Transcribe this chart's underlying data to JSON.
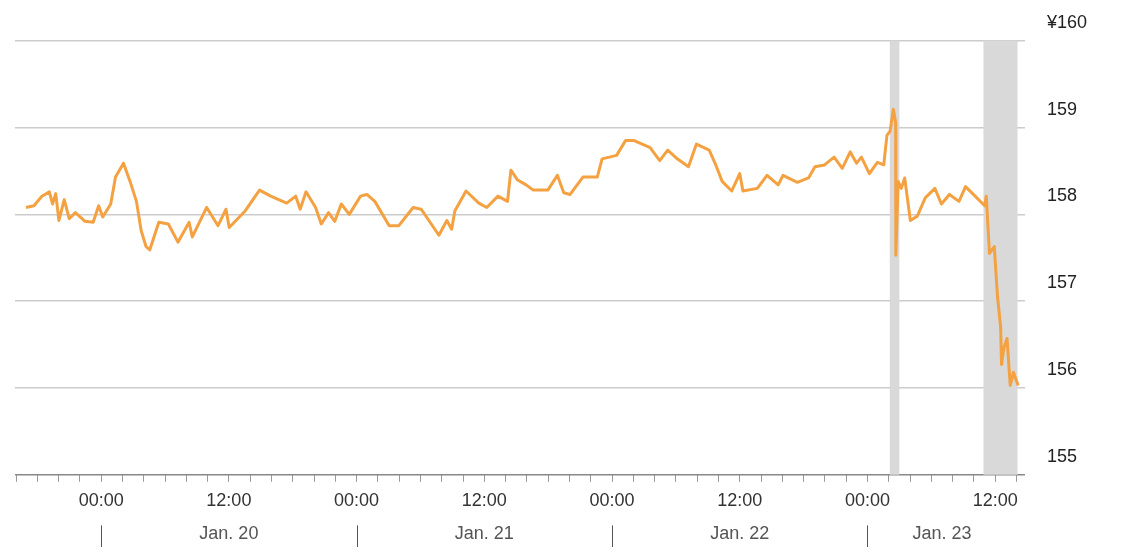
{
  "chart_data": {
    "type": "line",
    "marker": "none",
    "grid": "y",
    "x": [
      "--01-19T16:56",
      "--01-19T17:41",
      "--01-19T18:26",
      "--01-19T19:08",
      "--01-19T19:26",
      "--01-19T19:44",
      "--01-19T20:02",
      "--01-19T20:32",
      "--01-19T21:00",
      "--01-19T21:35",
      "--01-19T22:29",
      "--01-19T23:15",
      "--01-19T23:46",
      "--01-20T00:09",
      "--01-20T00:54",
      "--01-20T01:21",
      "--01-20T02:06",
      "--01-20T02:43",
      "--01-20T03:19",
      "--01-20T03:46",
      "--01-20T04:13",
      "--01-20T04:34",
      "--01-20T05:25",
      "--01-20T06:19",
      "--01-20T07:13",
      "--01-20T08:16",
      "--01-20T08:34",
      "--01-20T09:55",
      "--01-20T10:59",
      "--01-20T11:44",
      "--01-20T12:02",
      "--01-20T13:32",
      "--01-20T14:53",
      "--01-20T15:56",
      "--01-20T17:26",
      "--01-20T18:17",
      "--01-20T18:42",
      "--01-20T19:15",
      "--01-20T20:09",
      "--01-20T20:41",
      "--01-20T21:22",
      "--01-20T21:57",
      "--01-20T22:34",
      "--01-20T23:19",
      "--01-21T00:22",
      "--01-21T00:58",
      "--01-21T01:43",
      "--01-21T03:04",
      "--01-21T03:58",
      "--01-21T05:19",
      "--01-21T06:04",
      "--01-21T06:41",
      "--01-21T07:44",
      "--01-21T08:29",
      "--01-21T08:56",
      "--01-21T09:14",
      "--01-21T10:17",
      "--01-21T11:29",
      "--01-21T12:14",
      "--01-21T13:17",
      "--01-21T14:11",
      "--01-21T14:30",
      "--01-21T15:06",
      "--01-21T15:56",
      "--01-21T16:36",
      "--01-21T17:58",
      "--01-21T18:52",
      "--01-21T19:28",
      "--01-21T20:04",
      "--01-21T21:16",
      "--01-21T22:37",
      "--01-21T23:04",
      "--01-22T00:26",
      "--01-22T01:16",
      "--01-22T02:05",
      "--01-22T03:35",
      "--01-22T04:29",
      "--01-22T05:14",
      "--01-22T06:08",
      "--01-22T07:11",
      "--01-22T07:56",
      "--01-22T09:08",
      "--01-22T09:45",
      "--01-22T10:21",
      "--01-22T11:15",
      "--01-22T12:00",
      "--01-22T12:18",
      "--01-22T13:39",
      "--01-22T14:34",
      "--01-22T15:37",
      "--01-22T16:04",
      "--01-22T17:25",
      "--01-22T18:28",
      "--01-22T19:04",
      "--01-22T19:58",
      "--01-22T20:52",
      "--01-22T21:38",
      "--01-22T22:23",
      "--01-22T22:59",
      "--01-22T23:26",
      "--01-23T00:11",
      "--01-23T00:56",
      "--01-23T01:32",
      "--01-23T01:50",
      "--01-23T02:08",
      "--01-23T02:26",
      "--01-23T02:39",
      "--01-23T02:40",
      "--01-23T02:53",
      "--01-23T03:11",
      "--01-23T03:30",
      "--01-23T04:02",
      "--01-23T04:41",
      "--01-23T05:26",
      "--01-23T06:20",
      "--01-23T06:57",
      "--01-23T07:42",
      "--01-23T08:36",
      "--01-23T09:13",
      "--01-23T10:07",
      "--01-23T11:01",
      "--01-23T11:10",
      "--01-23T11:28",
      "--01-23T11:55",
      "--01-23T12:13",
      "--01-23T12:31",
      "--01-23T12:36",
      "--01-23T12:49",
      "--01-23T13:07",
      "--01-23T13:25",
      "--01-23T13:43",
      "--01-23T14:10"
    ],
    "series": [
      {
        "color": "#f4a142",
        "values": [
          158.08,
          158.1,
          158.21,
          158.26,
          158.12,
          158.24,
          157.93,
          158.17,
          157.95,
          158.02,
          157.92,
          157.91,
          158.1,
          157.97,
          158.12,
          158.43,
          158.59,
          158.38,
          158.15,
          157.81,
          157.63,
          157.59,
          157.91,
          157.89,
          157.68,
          157.91,
          157.74,
          158.08,
          157.87,
          158.06,
          157.85,
          158.04,
          158.28,
          158.21,
          158.13,
          158.21,
          158.06,
          158.26,
          158.08,
          157.89,
          158.02,
          157.92,
          158.12,
          158.0,
          158.21,
          158.23,
          158.15,
          157.87,
          157.87,
          158.08,
          158.06,
          157.95,
          157.76,
          157.93,
          157.83,
          158.04,
          158.27,
          158.13,
          158.08,
          158.21,
          158.15,
          158.51,
          158.4,
          158.34,
          158.28,
          158.28,
          158.45,
          158.25,
          158.23,
          158.43,
          158.43,
          158.64,
          158.68,
          158.85,
          158.85,
          158.77,
          158.62,
          158.74,
          158.64,
          158.55,
          158.81,
          158.74,
          158.57,
          158.38,
          158.27,
          158.47,
          158.27,
          158.3,
          158.45,
          158.34,
          158.45,
          158.37,
          158.42,
          158.55,
          158.57,
          158.66,
          158.53,
          158.72,
          158.59,
          158.66,
          158.47,
          158.6,
          158.57,
          158.91,
          158.96,
          159.21,
          159.06,
          157.53,
          158.38,
          158.3,
          158.42,
          157.93,
          157.98,
          158.19,
          158.3,
          158.12,
          158.23,
          158.15,
          158.32,
          158.21,
          158.1,
          158.21,
          157.55,
          157.63,
          157.06,
          156.7,
          156.27,
          156.46,
          156.57,
          156.03,
          156.18,
          156.03
        ]
      }
    ],
    "xlim": [
      "--01-19T15:54",
      "--01-23T14:48"
    ],
    "xticks": [
      {
        "value": "--01-19T16:00",
        "label": null
      },
      {
        "value": "--01-19T18:00",
        "label": null
      },
      {
        "value": "--01-19T20:00",
        "label": null
      },
      {
        "value": "--01-19T22:00",
        "label": null
      },
      {
        "value": "--01-20T00:00",
        "label": "00:00"
      },
      {
        "value": "--01-20T02:00",
        "label": null
      },
      {
        "value": "--01-20T04:00",
        "label": null
      },
      {
        "value": "--01-20T06:00",
        "label": null
      },
      {
        "value": "--01-20T08:00",
        "label": null
      },
      {
        "value": "--01-20T10:00",
        "label": null
      },
      {
        "value": "--01-20T12:00",
        "label": "12:00"
      },
      {
        "value": "--01-20T14:00",
        "label": null
      },
      {
        "value": "--01-20T16:00",
        "label": null
      },
      {
        "value": "--01-20T18:00",
        "label": null
      },
      {
        "value": "--01-20T20:00",
        "label": null
      },
      {
        "value": "--01-20T22:00",
        "label": null
      },
      {
        "value": "--01-21T00:00",
        "label": "00:00"
      },
      {
        "value": "--01-21T02:00",
        "label": null
      },
      {
        "value": "--01-21T04:00",
        "label": null
      },
      {
        "value": "--01-21T06:00",
        "label": null
      },
      {
        "value": "--01-21T08:00",
        "label": null
      },
      {
        "value": "--01-21T10:00",
        "label": null
      },
      {
        "value": "--01-21T12:00",
        "label": "12:00"
      },
      {
        "value": "--01-21T14:00",
        "label": null
      },
      {
        "value": "--01-21T16:00",
        "label": null
      },
      {
        "value": "--01-21T18:00",
        "label": null
      },
      {
        "value": "--01-21T20:00",
        "label": null
      },
      {
        "value": "--01-21T22:00",
        "label": null
      },
      {
        "value": "--01-22T00:00",
        "label": "00:00"
      },
      {
        "value": "--01-22T02:00",
        "label": null
      },
      {
        "value": "--01-22T04:00",
        "label": null
      },
      {
        "value": "--01-22T06:00",
        "label": null
      },
      {
        "value": "--01-22T08:00",
        "label": null
      },
      {
        "value": "--01-22T10:00",
        "label": null
      },
      {
        "value": "--01-22T12:00",
        "label": "12:00"
      },
      {
        "value": "--01-22T14:00",
        "label": null
      },
      {
        "value": "--01-22T16:00",
        "label": null
      },
      {
        "value": "--01-22T18:00",
        "label": null
      },
      {
        "value": "--01-22T20:00",
        "label": null
      },
      {
        "value": "--01-22T22:00",
        "label": null
      },
      {
        "value": "--01-23T00:00",
        "label": "00:00"
      },
      {
        "value": "--01-23T02:00",
        "label": null
      },
      {
        "value": "--01-23T04:00",
        "label": null
      },
      {
        "value": "--01-23T06:00",
        "label": null
      },
      {
        "value": "--01-23T08:00",
        "label": null
      },
      {
        "value": "--01-23T10:00",
        "label": null
      },
      {
        "value": "--01-23T12:00",
        "label": "12:00"
      },
      {
        "value": "--01-23T14:00",
        "label": null
      }
    ],
    "x2lim": [
      "--01-19T15:54",
      "--01-23T14:48"
    ],
    "x2ticks": [
      {
        "value": "--01-20T00:00",
        "label": null
      },
      {
        "value": "--01-20T12:00",
        "label": "Jan. 20"
      },
      {
        "value": "--01-21T00:00",
        "label": null
      },
      {
        "value": "--01-21T12:00",
        "label": "Jan. 21"
      },
      {
        "value": "--01-22T00:00",
        "label": null
      },
      {
        "value": "--01-22T12:00",
        "label": "Jan. 22"
      },
      {
        "value": "--01-23T00:00",
        "label": null
      },
      {
        "value": "--01-23T07:00",
        "label": "Jan. 23"
      }
    ],
    "ylim": [
      155,
      160
    ],
    "yticks": [
      155,
      156,
      157,
      158,
      159,
      {
        "value": 160,
        "label": "¥160"
      }
    ],
    "bands": [
      {
        "axis": "x",
        "from": "--01-23T02:06",
        "to": "--01-23T03:00",
        "color": "#d9d9d9"
      },
      {
        "axis": "x",
        "from": "--01-23T10:54",
        "to": "--01-23T14:06",
        "color": "#d9d9d9"
      }
    ]
  }
}
